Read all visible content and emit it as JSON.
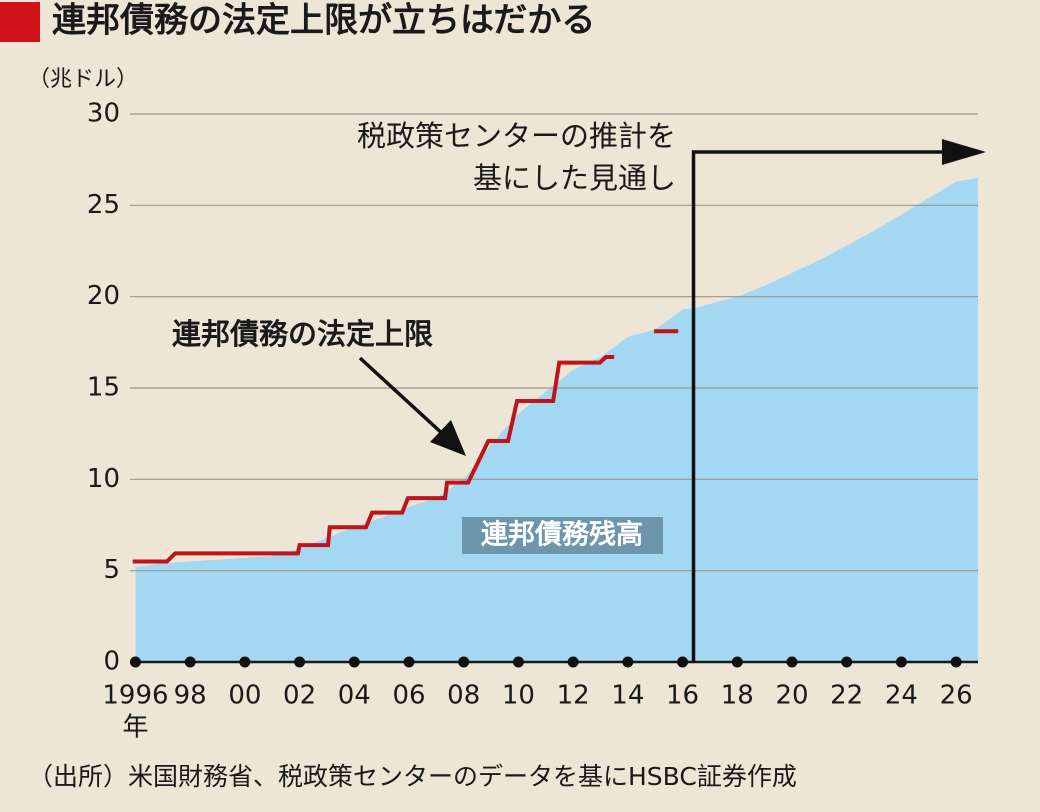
{
  "chart_data": {
    "type": "area",
    "title": "連邦債務の法定上限が立ちはだかる",
    "y_unit": "（兆ドル）",
    "x_unit": "年",
    "source": "（出所）米国財務省、税政策センターのデータを基にHSBC証券作成",
    "annotation": [
      "税政策センターの推計を",
      "基にした見通し"
    ],
    "projection_start": 2016.4,
    "xlim": [
      1995.8,
      2026.8
    ],
    "ylim": [
      0,
      30
    ],
    "yticks": [
      0,
      5,
      10,
      15,
      20,
      25,
      30
    ],
    "xticks": [
      {
        "value": 1996,
        "label": "1996"
      },
      {
        "value": 1998,
        "label": "98"
      },
      {
        "value": 2000,
        "label": "00"
      },
      {
        "value": 2002,
        "label": "02"
      },
      {
        "value": 2004,
        "label": "04"
      },
      {
        "value": 2006,
        "label": "06"
      },
      {
        "value": 2008,
        "label": "08"
      },
      {
        "value": 2010,
        "label": "10"
      },
      {
        "value": 2012,
        "label": "12"
      },
      {
        "value": 2014,
        "label": "14"
      },
      {
        "value": 2016,
        "label": "16"
      },
      {
        "value": 2018,
        "label": "18"
      },
      {
        "value": 2020,
        "label": "20"
      },
      {
        "value": 2022,
        "label": "22"
      },
      {
        "value": 2024,
        "label": "24"
      },
      {
        "value": 2026,
        "label": "26"
      }
    ],
    "grid": true,
    "series": [
      {
        "name": "連邦債務残高",
        "type": "area",
        "color": "#a3d7f2",
        "x": [
          1996,
          1997,
          1998,
          1999,
          2000,
          2001,
          2002,
          2003,
          2004,
          2005,
          2006,
          2007,
          2008,
          2009,
          2010,
          2011,
          2012,
          2013,
          2014,
          2015,
          2016,
          2016.5,
          2017,
          2018,
          2019,
          2020,
          2021,
          2022,
          2023,
          2024,
          2025,
          2026,
          2026.8
        ],
        "values": [
          5.2,
          5.4,
          5.5,
          5.6,
          5.7,
          5.8,
          6.2,
          6.8,
          7.4,
          7.9,
          8.5,
          9.0,
          10.0,
          11.9,
          13.6,
          14.8,
          16.0,
          16.7,
          17.8,
          18.2,
          19.3,
          19.4,
          19.6,
          20.0,
          20.6,
          21.3,
          22.0,
          22.8,
          23.6,
          24.5,
          25.4,
          26.3,
          26.5
        ]
      },
      {
        "name": "連邦債務の法定上限",
        "type": "line",
        "color": "#c0141b",
        "x": [
          1995.9,
          1997.15,
          1997.45,
          2001.94,
          2002.0,
          2003.04,
          2003.1,
          2004.43,
          2004.65,
          2005.75,
          2005.96,
          2007.32,
          2007.39,
          2008.16,
          2008.9,
          2009.62,
          2009.95,
          2011.27,
          2011.49,
          2012.98,
          2013.2,
          2013.5,
          null,
          2014.96,
          2015.84
        ],
        "values": [
          5.5,
          5.5,
          5.95,
          5.95,
          6.4,
          6.4,
          7.38,
          7.38,
          8.18,
          8.18,
          8.97,
          8.97,
          9.82,
          9.82,
          12.1,
          12.1,
          14.29,
          14.29,
          16.39,
          16.39,
          16.7,
          16.7,
          null,
          18.11,
          18.11
        ]
      }
    ]
  }
}
